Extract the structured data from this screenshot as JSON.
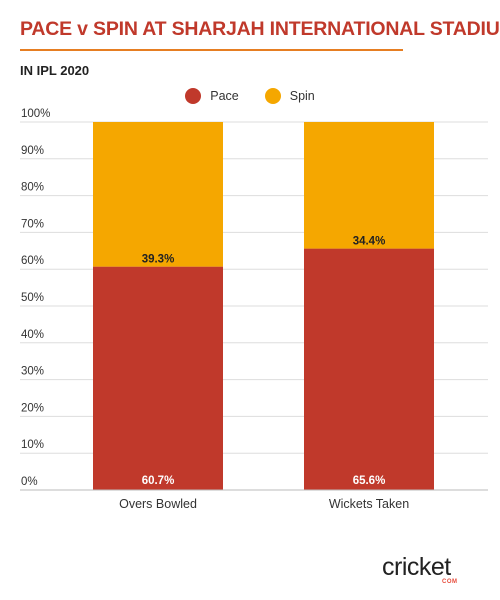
{
  "header": {
    "title": "PACE v SPIN AT SHARJAH INTERNATIONAL STADIUM",
    "subtitle": "IN IPL 2020"
  },
  "logo": {
    "text": "cricket",
    "sub": "COM"
  },
  "colors": {
    "title": "#c0392b",
    "rule": "#e67e22",
    "pace": "#c0392b",
    "spin": "#f5a700"
  },
  "chart_data": {
    "type": "bar",
    "stacked": true,
    "categories": [
      "Overs Bowled",
      "Wickets Taken"
    ],
    "series": [
      {
        "name": "Pace",
        "values": [
          60.7,
          65.6
        ],
        "labels": [
          "60.7%",
          "65.6%"
        ]
      },
      {
        "name": "Spin",
        "values": [
          39.3,
          34.4
        ],
        "labels": [
          "39.3%",
          "34.4%"
        ]
      }
    ],
    "title": "PACE v SPIN AT SHARJAH INTERNATIONAL STADIUM",
    "subtitle": "IN IPL 2020",
    "ylim": [
      0,
      100
    ],
    "yticks": [
      "0%",
      "10%",
      "20%",
      "30%",
      "40%",
      "50%",
      "60%",
      "70%",
      "80%",
      "90%",
      "100%"
    ],
    "grid": true,
    "legend": "top-center"
  }
}
